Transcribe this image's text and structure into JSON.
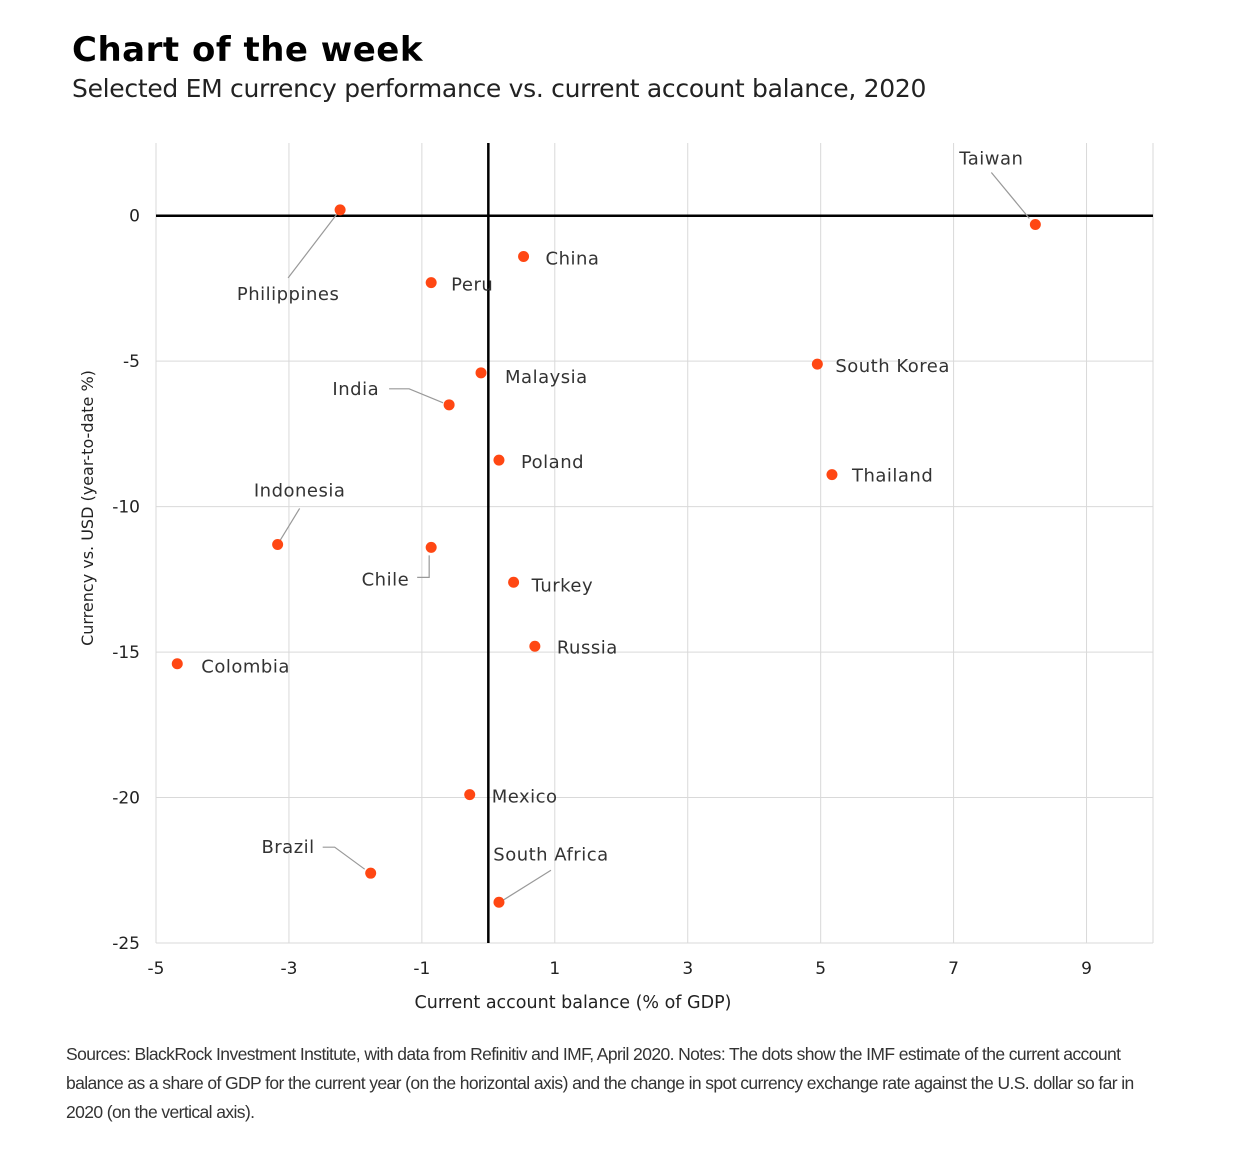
{
  "header": {
    "title": "Chart of the week",
    "subtitle": "Selected EM currency performance vs. current account balance, 2020"
  },
  "footnote": "Sources: BlackRock Investment Institute, with data from Refinitiv and IMF, April 2020. Notes: The dots show the IMF estimate of the current account balance as a share of GDP for the current year (on the horizontal axis) and the change in spot currency exchange rate against the U.S. dollar so far in 2020 (on the vertical axis).",
  "chart_data": {
    "type": "scatter",
    "title": "Chart of the week",
    "xlabel": "Current account balance (% of GDP)",
    "ylabel": "Currency vs. USD (year-to-date %)",
    "xlim": [
      -5,
      10
    ],
    "ylim": [
      -25,
      2.5
    ],
    "xticks": [
      -5,
      -3,
      -1,
      1,
      3,
      5,
      7,
      9
    ],
    "yticks": [
      0,
      -5,
      -10,
      -15,
      -20,
      -25
    ],
    "grid": true,
    "marker_color": "#ff4713",
    "points": [
      {
        "label": "Philippines",
        "x": -2.23,
        "y": 0.2
      },
      {
        "label": "Taiwan",
        "x": 8.23,
        "y": -0.3
      },
      {
        "label": "China",
        "x": 0.53,
        "y": -1.4
      },
      {
        "label": "Peru",
        "x": -0.86,
        "y": -2.3
      },
      {
        "label": "South Korea",
        "x": 4.95,
        "y": -5.1
      },
      {
        "label": "Malaysia",
        "x": -0.11,
        "y": -5.4
      },
      {
        "label": "India",
        "x": -0.59,
        "y": -6.5
      },
      {
        "label": "Poland",
        "x": 0.16,
        "y": -8.4
      },
      {
        "label": "Thailand",
        "x": 5.17,
        "y": -8.9
      },
      {
        "label": "Indonesia",
        "x": -3.17,
        "y": -11.3
      },
      {
        "label": "Chile",
        "x": -0.86,
        "y": -11.4
      },
      {
        "label": "Turkey",
        "x": 0.38,
        "y": -12.6
      },
      {
        "label": "Russia",
        "x": 0.7,
        "y": -14.8
      },
      {
        "label": "Colombia",
        "x": -4.68,
        "y": -15.4
      },
      {
        "label": "Mexico",
        "x": -0.28,
        "y": -19.9
      },
      {
        "label": "Brazil",
        "x": -1.77,
        "y": -22.6
      },
      {
        "label": "South Africa",
        "x": 0.16,
        "y": -23.6
      }
    ]
  }
}
